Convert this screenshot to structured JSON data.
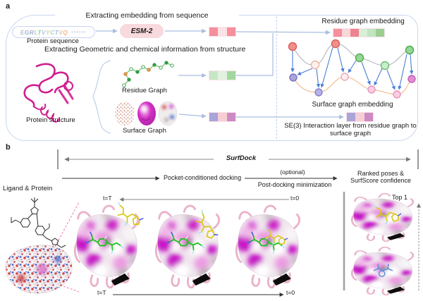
{
  "panel_a": {
    "label": "a",
    "seq_flow": {
      "header": "Extracting embedding from sequence",
      "sequence": [
        {
          "ch": "E",
          "color": "#aebde6"
        },
        {
          "ch": "G",
          "color": "#a9b4c4"
        },
        {
          "ch": "R",
          "color": "#9fb4d6"
        },
        {
          "ch": "L",
          "color": "#c4c9d2"
        },
        {
          "ch": "T",
          "color": "#8fcf8a"
        },
        {
          "ch": "V",
          "color": "#aeccee"
        },
        {
          "ch": "Y",
          "color": "#e0d193"
        },
        {
          "ch": "C",
          "color": "#a8d8c2"
        },
        {
          "ch": "T",
          "color": "#9ec0e8"
        },
        {
          "ch": "V",
          "color": "#f2c4a2"
        },
        {
          "ch": "Q",
          "color": "#f0b58e"
        }
      ],
      "ellipsis": "······",
      "caption": "Protein sequence",
      "model": "ESM-2"
    },
    "struct_flow": {
      "header": "Extracting Geometric and chemical information from structure",
      "protein_caption": "Protein structure",
      "residue_caption": "Residue Graph",
      "surface_caption": "Surface Graph"
    },
    "right": {
      "residue_embedding": "Residue graph embedding",
      "surface_embedding": "Surface graph embedding",
      "se3": "SE(3) Interaction layer from residue graph to surface graph"
    },
    "embeddings": {
      "sequence_bar": [
        "#f58f9c",
        "#fbe2e4",
        "#f58f9c"
      ],
      "residue_bar": [
        "#c6e7c4",
        "#e3f2e0",
        "#a3d7a0"
      ],
      "surface_bar": [
        "#a9a4da",
        "#f6cfd4",
        "#cd8bc4"
      ],
      "residue_graph_bar": [
        "#f48f9b",
        "#f9d7da",
        "#ee8290",
        "#d8eed6",
        "#c1e5c0",
        "#9bce90"
      ],
      "se3_bar": [
        "#a9a4da",
        "#f6cfd4",
        "#cd8bc4"
      ]
    }
  },
  "panel_b": {
    "label": "b",
    "title": "SurfDock",
    "ligand_protein": "Ligand & Protein",
    "pocket_docking": "Pocket-conditioned docking",
    "optional": "(optional)",
    "post_docking": "Post-docking minimization",
    "ranked_line1": "Ranked poses &",
    "ranked_line2": "SurfScore confidence",
    "t_start": "t=T",
    "t_end": "t=0",
    "top1": "Top 1"
  },
  "colors": {
    "panel_border": "#c7d6f0",
    "esm_fill": "#f8d9dd",
    "flow_arrow": "#a9bde0",
    "graph_arrow": "#4a7fd4",
    "surface_magenta": "#c713c7",
    "ribbon_pink": "#e9aec8"
  }
}
